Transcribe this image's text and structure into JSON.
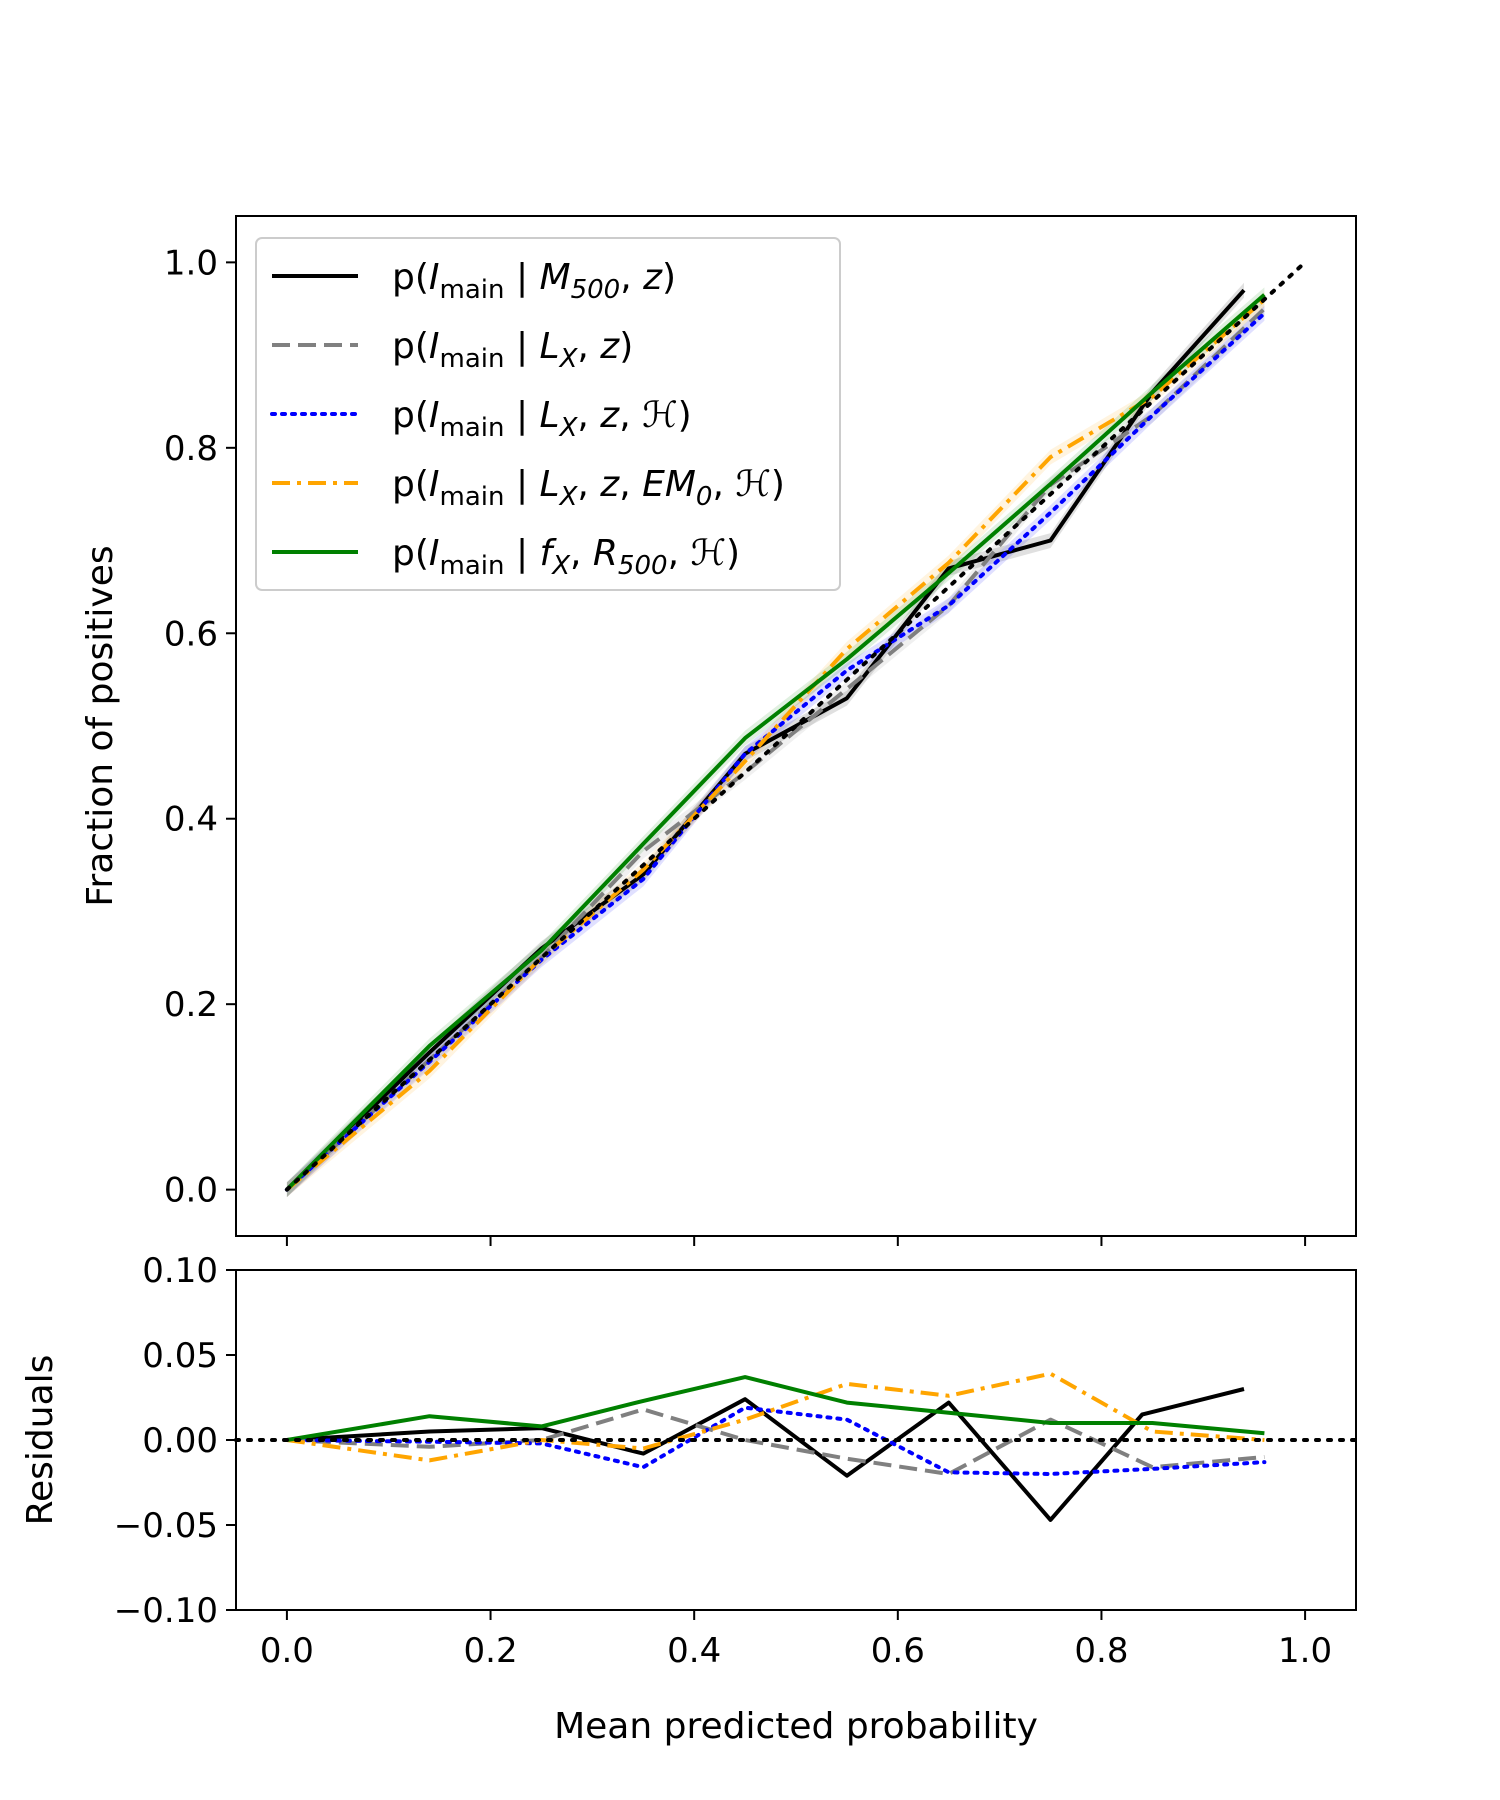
{
  "chart_data": [
    {
      "type": "line",
      "panel": "calibration",
      "ylabel": "Fraction of positives",
      "xlim": [
        -0.05,
        1.05
      ],
      "ylim": [
        -0.05,
        1.05
      ],
      "yticks": [
        "0.0",
        "0.2",
        "0.4",
        "0.6",
        "0.8",
        "1.0"
      ],
      "ytick_values": [
        0.0,
        0.2,
        0.4,
        0.6,
        0.8,
        1.0
      ],
      "reference": {
        "name": "perfect calibration",
        "x": [
          0,
          1
        ],
        "y": [
          0,
          1
        ],
        "color": "#000000",
        "style": "dotted"
      },
      "legend_position": "upper-left",
      "series": [
        {
          "id": "m500",
          "name": "p(I_main | M_500, z)",
          "color": "#000000",
          "style": "solid",
          "x": [
            0.0,
            0.14,
            0.25,
            0.35,
            0.45,
            0.55,
            0.65,
            0.75,
            0.85,
            0.94
          ],
          "y": [
            0.0,
            0.148,
            0.26,
            0.34,
            0.47,
            0.53,
            0.67,
            0.7,
            0.86,
            0.97
          ]
        },
        {
          "id": "lx",
          "name": "p(I_main | L_X, z)",
          "color": "#808080",
          "style": "dashed",
          "x": [
            0.0,
            0.14,
            0.25,
            0.35,
            0.45,
            0.55,
            0.65,
            0.75,
            0.85,
            0.96
          ],
          "y": [
            0.0,
            0.14,
            0.25,
            0.365,
            0.45,
            0.54,
            0.63,
            0.76,
            0.835,
            0.95
          ]
        },
        {
          "id": "lxh",
          "name": "p(I_main | L_X, z, H)",
          "color": "#0000ff",
          "style": "dotted",
          "x": [
            0.0,
            0.14,
            0.25,
            0.35,
            0.45,
            0.55,
            0.65,
            0.75,
            0.85,
            0.96
          ],
          "y": [
            0.0,
            0.138,
            0.248,
            0.335,
            0.47,
            0.56,
            0.63,
            0.73,
            0.835,
            0.945
          ]
        },
        {
          "id": "em",
          "name": "p(I_main | L_X, z, EM_0, H)",
          "color": "#ffa500",
          "style": "dashdot",
          "x": [
            0.0,
            0.14,
            0.25,
            0.35,
            0.45,
            0.55,
            0.65,
            0.75,
            0.85,
            0.96
          ],
          "y": [
            0.0,
            0.128,
            0.25,
            0.345,
            0.462,
            0.583,
            0.676,
            0.79,
            0.855,
            0.96
          ]
        },
        {
          "id": "fx",
          "name": "p(I_main | f_X, R_500, H)",
          "color": "#008000",
          "style": "solid",
          "x": [
            0.0,
            0.14,
            0.25,
            0.35,
            0.45,
            0.55,
            0.65,
            0.75,
            0.85,
            0.96
          ],
          "y": [
            0.0,
            0.155,
            0.258,
            0.373,
            0.487,
            0.572,
            0.665,
            0.761,
            0.86,
            0.965
          ]
        }
      ]
    },
    {
      "type": "line",
      "panel": "residuals",
      "title": "",
      "xlabel": "Mean predicted probability",
      "ylabel": "Residuals",
      "xlim": [
        -0.05,
        1.05
      ],
      "ylim": [
        -0.1,
        0.1
      ],
      "xticks": [
        "0.0",
        "0.2",
        "0.4",
        "0.6",
        "0.8",
        "1.0"
      ],
      "xtick_values": [
        0.0,
        0.2,
        0.4,
        0.6,
        0.8,
        1.0
      ],
      "yticks": [
        "0.10",
        "0.05",
        "0.00",
        "−0.05",
        "−0.10"
      ],
      "ytick_values": [
        0.1,
        0.05,
        0.0,
        -0.05,
        -0.1
      ],
      "reference": {
        "name": "zero line",
        "y": 0.0,
        "color": "#000000",
        "style": "dotted"
      },
      "series": [
        {
          "id": "m500",
          "color": "#000000",
          "style": "solid",
          "x": [
            0.0,
            0.14,
            0.25,
            0.35,
            0.45,
            0.55,
            0.65,
            0.75,
            0.84,
            0.94
          ],
          "y": [
            0.0,
            0.005,
            0.007,
            -0.008,
            0.024,
            -0.021,
            0.022,
            -0.047,
            0.015,
            0.03
          ]
        },
        {
          "id": "lx",
          "color": "#808080",
          "style": "dashed",
          "x": [
            0.0,
            0.14,
            0.25,
            0.35,
            0.45,
            0.55,
            0.65,
            0.75,
            0.85,
            0.96
          ],
          "y": [
            0.0,
            -0.004,
            0.0,
            0.018,
            0.0,
            -0.011,
            -0.02,
            0.012,
            -0.016,
            -0.01
          ]
        },
        {
          "id": "lxh",
          "color": "#0000ff",
          "style": "dotted",
          "x": [
            0.0,
            0.14,
            0.25,
            0.35,
            0.45,
            0.55,
            0.65,
            0.75,
            0.85,
            0.96
          ],
          "y": [
            0.0,
            -0.001,
            -0.002,
            -0.016,
            0.019,
            0.012,
            -0.019,
            -0.02,
            -0.017,
            -0.013
          ]
        },
        {
          "id": "em",
          "color": "#ffa500",
          "style": "dashdot",
          "x": [
            0.0,
            0.14,
            0.25,
            0.35,
            0.45,
            0.55,
            0.65,
            0.75,
            0.85,
            0.96
          ],
          "y": [
            0.0,
            -0.012,
            0.0,
            -0.005,
            0.012,
            0.033,
            0.026,
            0.039,
            0.005,
            0.0
          ]
        },
        {
          "id": "fx",
          "color": "#008000",
          "style": "solid",
          "x": [
            0.0,
            0.14,
            0.25,
            0.35,
            0.45,
            0.55,
            0.65,
            0.75,
            0.85,
            0.96
          ],
          "y": [
            0.0,
            0.014,
            0.008,
            0.023,
            0.037,
            0.022,
            0.016,
            0.01,
            0.01,
            0.004
          ]
        }
      ]
    }
  ],
  "legend": [
    {
      "id": "m500",
      "prefix": "p(",
      "I": "I",
      "sub": "main",
      "sep": " | ",
      "args": [
        [
          "M",
          "500"
        ],
        [
          "z",
          ""
        ]
      ],
      "suffix": ")"
    },
    {
      "id": "lx",
      "prefix": "p(",
      "I": "I",
      "sub": "main",
      "sep": " | ",
      "args": [
        [
          "L",
          "X"
        ],
        [
          "z",
          ""
        ]
      ],
      "suffix": ")"
    },
    {
      "id": "lxh",
      "prefix": "p(",
      "I": "I",
      "sub": "main",
      "sep": " | ",
      "args": [
        [
          "L",
          "X"
        ],
        [
          "z",
          ""
        ],
        [
          "ℋ",
          ""
        ]
      ],
      "suffix": ")"
    },
    {
      "id": "em",
      "prefix": "p(",
      "I": "I",
      "sub": "main",
      "sep": " | ",
      "args": [
        [
          "L",
          "X"
        ],
        [
          "z",
          ""
        ],
        [
          "EM",
          "0"
        ],
        [
          "ℋ",
          ""
        ]
      ],
      "suffix": ")"
    },
    {
      "id": "fx",
      "prefix": "p(",
      "I": "I",
      "sub": "main",
      "sep": " | ",
      "args": [
        [
          "f",
          "X"
        ],
        [
          "R",
          "500"
        ],
        [
          "ℋ",
          ""
        ]
      ],
      "suffix": ")"
    }
  ]
}
